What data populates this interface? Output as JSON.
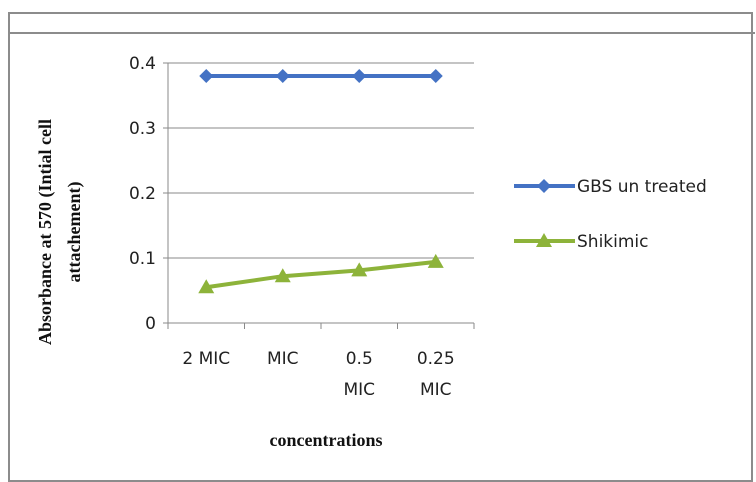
{
  "chart_data": {
    "type": "line",
    "categories": [
      [
        "2 MIC"
      ],
      [
        "MIC"
      ],
      [
        "0.5",
        "MIC"
      ],
      [
        "0.25",
        "MIC"
      ]
    ],
    "series": [
      {
        "name": "GBS un treated",
        "values": [
          0.38,
          0.38,
          0.38,
          0.38
        ],
        "color": "#4472C4",
        "marker": "diamond"
      },
      {
        "name": "Shikimic",
        "values": [
          0.055,
          0.072,
          0.081,
          0.094
        ],
        "color": "#8DB33A",
        "marker": "triangle"
      }
    ],
    "y_ticks": [
      "0",
      "0.1",
      "0.2",
      "0.3",
      "0.4"
    ],
    "ylim": [
      0,
      0.4
    ],
    "ylabel": [
      "Absorbance  at 570 (Intial  cell",
      "attachement)"
    ],
    "xlabel": "concentrations",
    "grid": "horizontal",
    "legend": "right"
  }
}
